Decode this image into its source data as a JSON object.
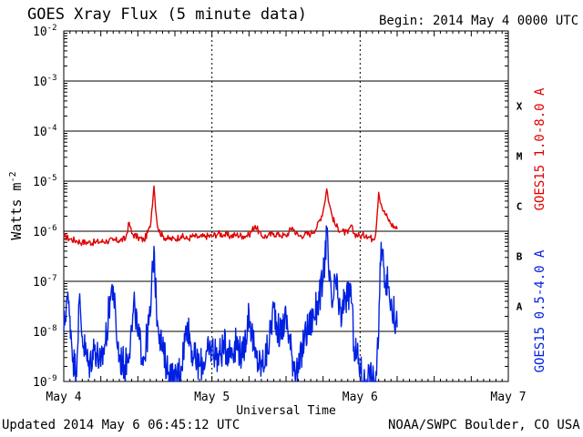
{
  "header": {
    "title": "GOES Xray Flux (5 minute data)",
    "begin": "Begin:  2014 May 4 0000 UTC"
  },
  "footer": {
    "updated": "Updated 2014 May  6 06:45:12 UTC",
    "credit": "NOAA/SWPC Boulder, CO USA"
  },
  "chart_data": {
    "type": "line",
    "title": "GOES Xray Flux (5 minute data)",
    "xlabel": "Universal Time",
    "ylabel": "Watts m",
    "ylabel_superscript": "-2",
    "yscale": "log",
    "ylim": [
      1e-09,
      0.01
    ],
    "xlim": [
      0,
      72
    ],
    "x_unit": "hours since 2014 May 4 0000 UTC",
    "x_ticks": [
      {
        "x": 0,
        "label": "May 4"
      },
      {
        "x": 24,
        "label": "May 5"
      },
      {
        "x": 48,
        "label": "May 6"
      },
      {
        "x": 72,
        "label": "May 7"
      }
    ],
    "y_ticks": [
      {
        "exp": -2,
        "label": "10",
        "sup": "-2"
      },
      {
        "exp": -3,
        "label": "10",
        "sup": "-3"
      },
      {
        "exp": -4,
        "label": "10",
        "sup": "-4"
      },
      {
        "exp": -5,
        "label": "10",
        "sup": "-5"
      },
      {
        "exp": -6,
        "label": "10",
        "sup": "-6"
      },
      {
        "exp": -7,
        "label": "10",
        "sup": "-7"
      },
      {
        "exp": -8,
        "label": "10",
        "sup": "-8"
      },
      {
        "exp": -9,
        "label": "10",
        "sup": "-9"
      }
    ],
    "gridlines_y": [
      -2,
      -3,
      -4,
      -5,
      -6,
      -7,
      -8
    ],
    "flare_classes": [
      {
        "label": "X",
        "exp": -3.5
      },
      {
        "label": "M",
        "exp": -4.5
      },
      {
        "label": "C",
        "exp": -5.5
      },
      {
        "label": "B",
        "exp": -6.5
      },
      {
        "label": "A",
        "exp": -7.5
      }
    ],
    "series": [
      {
        "name": "GOES15 1.0-8.0 A",
        "color": "#e00000",
        "x": [
          0,
          1,
          2,
          3,
          4,
          5,
          6,
          7,
          8,
          9,
          10,
          10.6,
          11,
          12,
          13,
          14,
          14.6,
          15,
          15.3,
          16,
          17,
          18,
          19,
          20,
          21,
          22,
          23,
          24,
          25,
          26,
          27,
          28,
          29,
          30,
          31,
          32,
          33,
          34,
          35,
          36,
          37,
          38,
          39,
          40,
          41,
          42,
          42.6,
          43,
          43.5,
          44,
          45,
          46,
          46.5,
          47,
          48,
          49,
          50,
          50.5,
          51,
          51.4,
          51.8,
          52.5,
          53,
          54
        ],
        "y": [
          8e-07,
          7e-07,
          6.5e-07,
          6e-07,
          6e-07,
          6e-07,
          6.2e-07,
          6.4e-07,
          6.5e-07,
          6.6e-07,
          7e-07,
          1.5e-06,
          9e-07,
          7.5e-07,
          6.6e-07,
          1.2e-06,
          8e-06,
          2e-06,
          1.1e-06,
          8e-07,
          7e-07,
          7e-07,
          8e-07,
          7e-07,
          8e-07,
          7.5e-07,
          8e-07,
          8e-07,
          9e-07,
          8.5e-07,
          8e-07,
          8.5e-07,
          8e-07,
          8.5e-07,
          1.3e-06,
          8e-07,
          8e-07,
          9e-07,
          8.5e-07,
          8e-07,
          1.2e-06,
          8e-07,
          8.5e-07,
          9e-07,
          1.2e-06,
          2.5e-06,
          7e-06,
          3.5e-06,
          2e-06,
          1.3e-06,
          1e-06,
          9e-07,
          1.3e-06,
          9e-07,
          8e-07,
          8.5e-07,
          7e-07,
          8.5e-07,
          6e-06,
          3.5e-06,
          2.5e-06,
          1.8e-06,
          1.4e-06,
          1.1e-06
        ]
      },
      {
        "name": "GOES15 0.5-4.0 A",
        "color": "#0020e0",
        "x": [
          0,
          0.5,
          1,
          1.5,
          2,
          2.5,
          3,
          4,
          5,
          6,
          7,
          7.5,
          8,
          8.5,
          9,
          10,
          11,
          11.5,
          12,
          13,
          14,
          14.6,
          15,
          16,
          17,
          18,
          19,
          20,
          21,
          22,
          23,
          24,
          25,
          26,
          27,
          28,
          29,
          30,
          31,
          32,
          33,
          34,
          35,
          36,
          37,
          38,
          39,
          40,
          41,
          42,
          42.6,
          43,
          43.5,
          44,
          45,
          45.5,
          46,
          46.5,
          47,
          48,
          48.5,
          49,
          49.5,
          50,
          50.5,
          51,
          51.4,
          51.8,
          52.5,
          53,
          54
        ],
        "y": [
          1e-08,
          5e-08,
          2e-08,
          3e-09,
          1.5e-09,
          4e-08,
          8e-09,
          2e-09,
          5e-09,
          2e-09,
          1e-08,
          5e-08,
          8e-08,
          1e-08,
          3e-09,
          2e-09,
          1e-08,
          3.5e-08,
          8e-09,
          3e-09,
          2e-08,
          5e-07,
          3e-08,
          4e-09,
          1.5e-09,
          1e-09,
          2e-09,
          1.5e-08,
          3e-09,
          2e-09,
          3e-09,
          5e-09,
          3e-09,
          5e-09,
          4e-09,
          6e-09,
          3e-09,
          2.5e-08,
          3e-09,
          2e-09,
          4e-09,
          3e-08,
          8e-09,
          2e-08,
          3e-09,
          1.5e-09,
          8e-09,
          1.5e-08,
          3e-08,
          1e-07,
          1e-06,
          1e-07,
          3e-08,
          1e-07,
          1.5e-08,
          6e-08,
          4e-08,
          8e-08,
          5e-09,
          2e-09,
          1e-09,
          1e-09,
          1.5e-09,
          1e-09,
          1e-09,
          8e-09,
          6e-07,
          2e-07,
          8e-08,
          4e-08,
          1.2e-08
        ]
      }
    ],
    "legend_placement": "right, vertical"
  }
}
